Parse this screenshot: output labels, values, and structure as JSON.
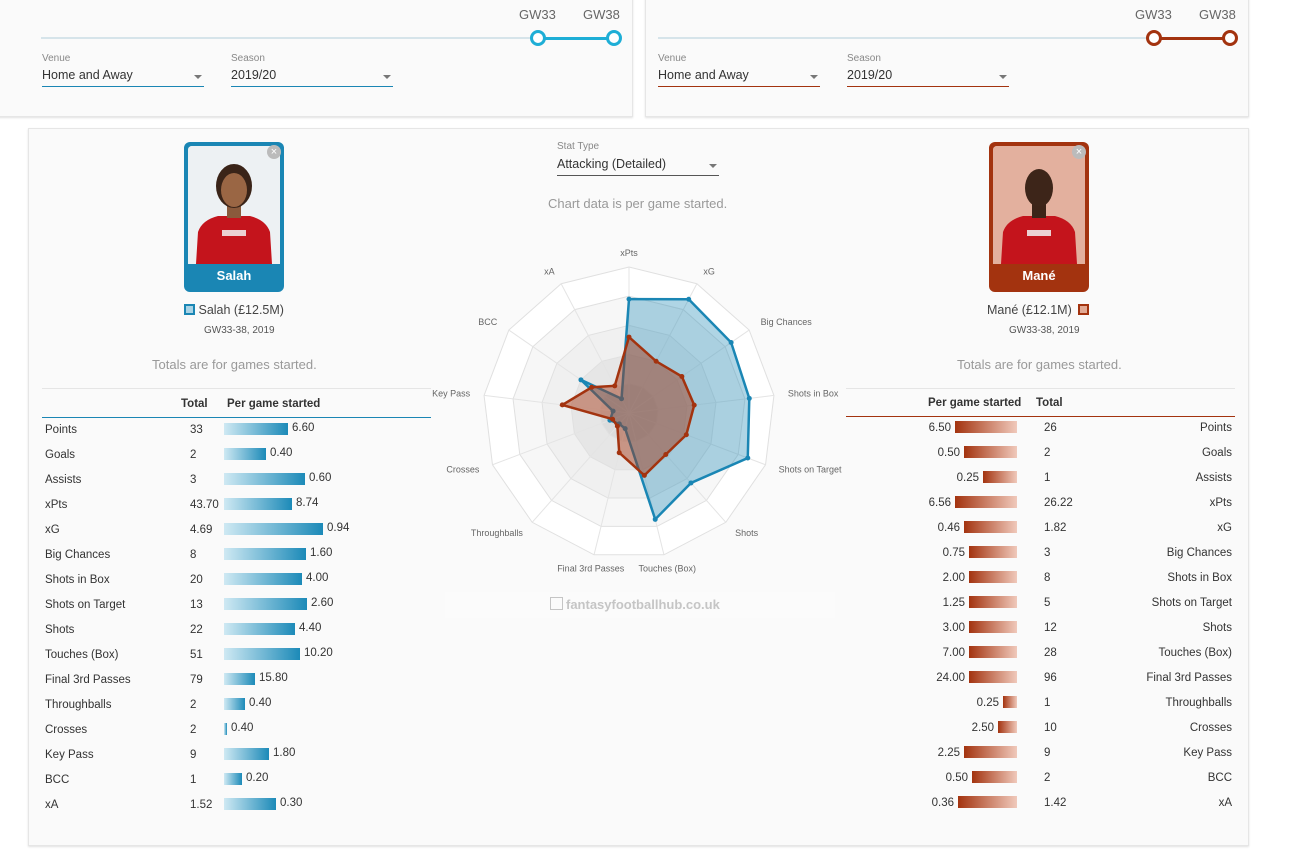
{
  "left_filters": {
    "gw_start": "GW33",
    "gw_end": "GW38",
    "venue_label": "Venue",
    "venue_value": "Home and Away",
    "season_label": "Season",
    "season_value": "2019/20"
  },
  "right_filters": {
    "gw_start": "GW33",
    "gw_end": "GW38",
    "venue_label": "Venue",
    "venue_value": "Home and Away",
    "season_label": "Season",
    "season_value": "2019/20"
  },
  "stat_type": {
    "label": "Stat Type",
    "value": "Attacking (Detailed)"
  },
  "chart_note": "Chart data is per game started.",
  "watermark": "fantasyfootballhub.co.uk",
  "players": [
    {
      "card_name": "Salah",
      "legend": "Salah (£12.5M)",
      "period": "GW33-38, 2019",
      "color": "#1a86b4",
      "remove_icon": "×"
    },
    {
      "card_name": "Mané",
      "legend": "Mané (£12.1M)",
      "period": "GW33-38, 2019",
      "color": "#a3330f",
      "remove_icon": "×"
    }
  ],
  "totals_note": "Totals are for games started.",
  "table_headers": {
    "total": "Total",
    "per_game": "Per game started"
  },
  "stats": [
    {
      "name": "Points",
      "p1_total": "33",
      "p1_pg": "6.60",
      "p2_total": "26",
      "p2_pg": "6.50"
    },
    {
      "name": "Goals",
      "p1_total": "2",
      "p1_pg": "0.40",
      "p2_total": "2",
      "p2_pg": "0.50"
    },
    {
      "name": "Assists",
      "p1_total": "3",
      "p1_pg": "0.60",
      "p2_total": "1",
      "p2_pg": "0.25"
    },
    {
      "name": "xPts",
      "p1_total": "43.70",
      "p1_pg": "8.74",
      "p2_total": "26.22",
      "p2_pg": "6.56"
    },
    {
      "name": "xG",
      "p1_total": "4.69",
      "p1_pg": "0.94",
      "p2_total": "1.82",
      "p2_pg": "0.46"
    },
    {
      "name": "Big Chances",
      "p1_total": "8",
      "p1_pg": "1.60",
      "p2_total": "3",
      "p2_pg": "0.75"
    },
    {
      "name": "Shots in Box",
      "p1_total": "20",
      "p1_pg": "4.00",
      "p2_total": "8",
      "p2_pg": "2.00"
    },
    {
      "name": "Shots on Target",
      "p1_total": "13",
      "p1_pg": "2.60",
      "p2_total": "5",
      "p2_pg": "1.25"
    },
    {
      "name": "Shots",
      "p1_total": "22",
      "p1_pg": "4.40",
      "p2_total": "12",
      "p2_pg": "3.00"
    },
    {
      "name": "Touches (Box)",
      "p1_total": "51",
      "p1_pg": "10.20",
      "p2_total": "28",
      "p2_pg": "7.00"
    },
    {
      "name": "Final 3rd Passes",
      "p1_total": "79",
      "p1_pg": "15.80",
      "p2_total": "96",
      "p2_pg": "24.00"
    },
    {
      "name": "Throughballs",
      "p1_total": "2",
      "p1_pg": "0.40",
      "p2_total": "1",
      "p2_pg": "0.25"
    },
    {
      "name": "Crosses",
      "p1_total": "2",
      "p1_pg": "0.40",
      "p2_total": "10",
      "p2_pg": "2.50"
    },
    {
      "name": "Key Pass",
      "p1_total": "9",
      "p1_pg": "1.80",
      "p2_total": "9",
      "p2_pg": "2.25"
    },
    {
      "name": "BCC",
      "p1_total": "1",
      "p1_pg": "0.20",
      "p2_total": "2",
      "p2_pg": "0.50"
    },
    {
      "name": "xA",
      "p1_total": "1.52",
      "p1_pg": "0.30",
      "p2_total": "1.42",
      "p2_pg": "0.36"
    }
  ],
  "bar_levels": {
    "p1": [
      0.62,
      0.4,
      0.78,
      0.65,
      0.95,
      0.79,
      0.75,
      0.8,
      0.68,
      0.73,
      0.3,
      0.2,
      0.03,
      0.43,
      0.17,
      0.5
    ],
    "p2": [
      1.0,
      0.85,
      0.55,
      1.0,
      0.85,
      0.78,
      0.78,
      0.78,
      0.78,
      0.78,
      0.78,
      0.22,
      0.3,
      0.85,
      0.73,
      0.95
    ]
  },
  "chart_data": {
    "type": "radar",
    "axes": [
      "xPts",
      "xG",
      "Big Chances",
      "Shots in Box",
      "Shots on Target",
      "Shots",
      "Touches (Box)",
      "Final 3rd Passes",
      "Throughballs",
      "Crosses",
      "Key Pass",
      "BCC",
      "xA"
    ],
    "series": [
      {
        "name": "Salah (£12.5M)",
        "color": "#1a86b4",
        "values": [
          0.78,
          0.88,
          0.85,
          0.83,
          0.87,
          0.64,
          0.75,
          0.11,
          0.1,
          0.14,
          0.11,
          0.4,
          0.11
        ]
      },
      {
        "name": "Mané (£12.1M)",
        "color": "#a3330f",
        "values": [
          0.52,
          0.4,
          0.44,
          0.45,
          0.42,
          0.38,
          0.44,
          0.28,
          0.12,
          0.12,
          0.46,
          0.31,
          0.21
        ]
      }
    ],
    "rings": 5,
    "range": [
      0,
      1
    ]
  }
}
